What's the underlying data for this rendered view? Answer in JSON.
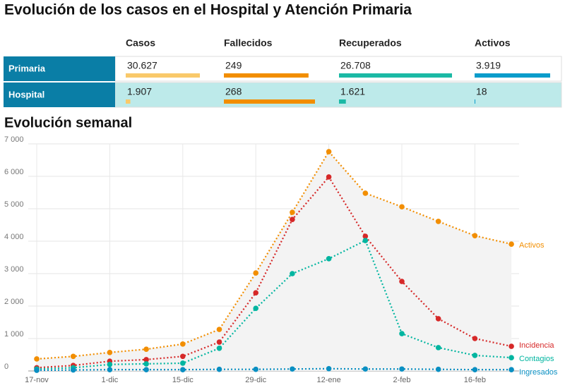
{
  "title": "Evolución de los casos en el Hospital y Atención Primaria",
  "table": {
    "columns": [
      "Casos",
      "Fallecidos",
      "Recuperados",
      "Activos"
    ],
    "colors": [
      "#f9c96a",
      "#f28e00",
      "#1bb9a5",
      "#0a9ccb"
    ],
    "rows": [
      {
        "name": "Primaria",
        "cells": [
          {
            "value": 30627,
            "label": "30.627"
          },
          {
            "value": 249,
            "label": "249"
          },
          {
            "value": 26708,
            "label": "26.708"
          },
          {
            "value": 3919,
            "label": "3.919"
          }
        ]
      },
      {
        "name": "Hospital",
        "cells": [
          {
            "value": 1907,
            "label": "1.907"
          },
          {
            "value": 268,
            "label": "268"
          },
          {
            "value": 1621,
            "label": "1.621"
          },
          {
            "value": 18,
            "label": "18"
          }
        ]
      }
    ]
  },
  "chart_data": {
    "type": "line",
    "title": "Evolución semanal",
    "categories": [
      "17-nov",
      null,
      "1-dic",
      null,
      "15-dic",
      null,
      "29-dic",
      null,
      "12-ene",
      null,
      "2-feb",
      null,
      "16-feb",
      null
    ],
    "series": [
      {
        "name": "Activos",
        "color": "#f28e00",
        "values": [
          370,
          450,
          570,
          670,
          830,
          1280,
          3020,
          4890,
          6760,
          5480,
          5060,
          4610,
          4170,
          3910
        ]
      },
      {
        "name": "Incidencia",
        "color": "#d62828",
        "values": [
          100,
          170,
          300,
          350,
          450,
          890,
          2410,
          4670,
          5980,
          4150,
          2760,
          1610,
          1000,
          760
        ]
      },
      {
        "name": "Contagios",
        "color": "#00b5a0",
        "values": [
          60,
          100,
          200,
          220,
          240,
          700,
          1930,
          3000,
          3460,
          4020,
          1150,
          720,
          480,
          410
        ]
      },
      {
        "name": "Ingresados",
        "color": "#0a8fc2",
        "values": [
          20,
          30,
          40,
          40,
          40,
          50,
          50,
          60,
          70,
          60,
          60,
          50,
          40,
          40
        ]
      }
    ],
    "ylim": [
      0,
      7000
    ],
    "yticks": [
      0,
      {
        "value": 1000,
        "label": "1 000"
      },
      {
        "value": 2000,
        "label": "2 000"
      },
      {
        "value": 3000,
        "label": "3 000"
      },
      {
        "value": 4000,
        "label": "4 000"
      },
      {
        "value": 5000,
        "label": "5 000"
      },
      {
        "value": 6000,
        "label": "6 000"
      },
      {
        "value": 7000,
        "label": "7 000"
      }
    ],
    "grid": true
  }
}
